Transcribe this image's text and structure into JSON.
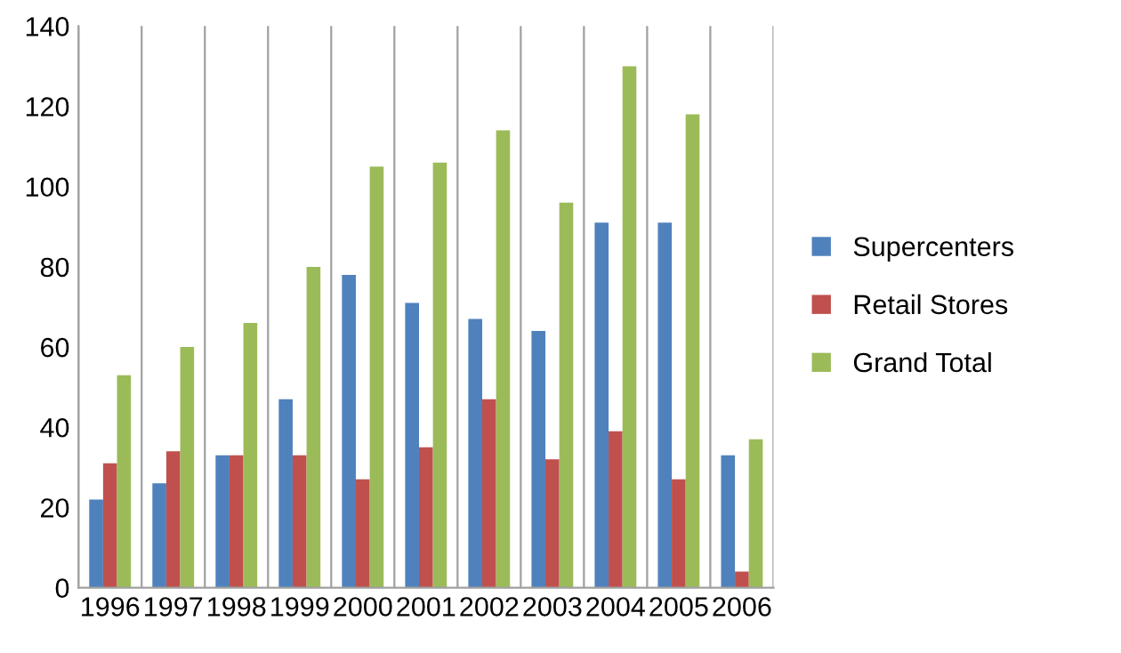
{
  "chart_data": {
    "type": "bar",
    "categories": [
      "1996",
      "1997",
      "1998",
      "1999",
      "2000",
      "2001",
      "2002",
      "2003",
      "2004",
      "2005",
      "2006"
    ],
    "series": [
      {
        "name": "Supercenters",
        "color": "#4f81bd",
        "values": [
          22,
          26,
          33,
          47,
          78,
          71,
          67,
          64,
          91,
          91,
          33
        ]
      },
      {
        "name": "Retail Stores",
        "color": "#c0504d",
        "values": [
          31,
          34,
          33,
          33,
          27,
          35,
          47,
          32,
          39,
          27,
          4
        ]
      },
      {
        "name": "Grand Total",
        "color": "#9bbb59",
        "values": [
          53,
          60,
          66,
          80,
          105,
          106,
          114,
          96,
          130,
          118,
          37
        ]
      }
    ],
    "ylim": [
      0,
      140
    ],
    "yticks": [
      0,
      20,
      40,
      60,
      80,
      100,
      120,
      140
    ],
    "grid": "x",
    "legend": "right"
  }
}
